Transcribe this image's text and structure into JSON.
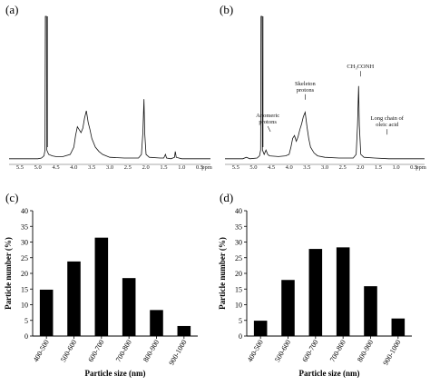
{
  "chart_data": [
    {
      "id": "a",
      "type": "line",
      "panel_label": "(a)",
      "x_tick_labels": [
        "5.5",
        "5.0",
        "4.5",
        "4.0",
        "3.5",
        "3.0",
        "2.5",
        "2.0",
        "1.5",
        "1.0",
        "0.5"
      ],
      "x_unit": "ppm",
      "xlim": [
        5.8,
        0.2
      ],
      "ylim": [
        0,
        100
      ],
      "points": [
        [
          5.8,
          2
        ],
        [
          5.0,
          2
        ],
        [
          4.9,
          2.5
        ],
        [
          4.83,
          4
        ],
        [
          4.8,
          8
        ],
        [
          4.79,
          100
        ],
        [
          4.76,
          100
        ],
        [
          4.75,
          8
        ],
        [
          4.7,
          5
        ],
        [
          4.6,
          4
        ],
        [
          4.5,
          3.5
        ],
        [
          4.3,
          3.5
        ],
        [
          4.1,
          5
        ],
        [
          4.0,
          10
        ],
        [
          3.95,
          18
        ],
        [
          3.9,
          24
        ],
        [
          3.85,
          22
        ],
        [
          3.8,
          20
        ],
        [
          3.75,
          23
        ],
        [
          3.7,
          30
        ],
        [
          3.65,
          35
        ],
        [
          3.6,
          27
        ],
        [
          3.55,
          22
        ],
        [
          3.5,
          16
        ],
        [
          3.4,
          10
        ],
        [
          3.3,
          7
        ],
        [
          3.2,
          5
        ],
        [
          3.0,
          3
        ],
        [
          2.6,
          2.5
        ],
        [
          2.2,
          2.5
        ],
        [
          2.12,
          5
        ],
        [
          2.08,
          20
        ],
        [
          2.05,
          43
        ],
        [
          2.03,
          20
        ],
        [
          1.99,
          5
        ],
        [
          1.9,
          3
        ],
        [
          1.6,
          2.5
        ],
        [
          1.5,
          2.5
        ],
        [
          1.45,
          5
        ],
        [
          1.42,
          2.5
        ],
        [
          1.3,
          2
        ],
        [
          1.2,
          3
        ],
        [
          1.18,
          7
        ],
        [
          1.15,
          3
        ],
        [
          1.0,
          2
        ],
        [
          0.2,
          2
        ]
      ]
    },
    {
      "id": "b",
      "type": "line",
      "panel_label": "(b)",
      "x_tick_labels": [
        "5.5",
        "5.0",
        "4.5",
        "4.0",
        "3.5",
        "3.0",
        "2.5",
        "2.0",
        "1.5",
        "1.0",
        "0.5"
      ],
      "x_unit": "ppm",
      "xlim": [
        5.8,
        0.2
      ],
      "ylim": [
        0,
        100
      ],
      "annotations": [
        {
          "lines": [
            "Anomeric",
            "protons"
          ],
          "at_x": 4.6,
          "at_y": 20
        },
        {
          "lines": [
            "Skeleton",
            "protons"
          ],
          "at_x": 3.55,
          "at_y": 42
        },
        {
          "lines": [
            "CH₃CONH"
          ],
          "at_x": 2.0,
          "at_y": 58
        },
        {
          "lines": [
            "Long chain of",
            "oleic acid"
          ],
          "at_x": 1.25,
          "at_y": 18
        }
      ],
      "points": [
        [
          5.8,
          2
        ],
        [
          5.3,
          2
        ],
        [
          5.2,
          3
        ],
        [
          5.1,
          2
        ],
        [
          4.9,
          2.5
        ],
        [
          4.83,
          4
        ],
        [
          4.8,
          8
        ],
        [
          4.79,
          100
        ],
        [
          4.76,
          100
        ],
        [
          4.75,
          8
        ],
        [
          4.7,
          5
        ],
        [
          4.65,
          8
        ],
        [
          4.6,
          5
        ],
        [
          4.55,
          4
        ],
        [
          4.3,
          3.5
        ],
        [
          4.1,
          4
        ],
        [
          4.0,
          5
        ],
        [
          3.95,
          10
        ],
        [
          3.9,
          16
        ],
        [
          3.85,
          18
        ],
        [
          3.8,
          14
        ],
        [
          3.75,
          17
        ],
        [
          3.7,
          22
        ],
        [
          3.65,
          26
        ],
        [
          3.6,
          31
        ],
        [
          3.55,
          34
        ],
        [
          3.5,
          24
        ],
        [
          3.45,
          16
        ],
        [
          3.4,
          10
        ],
        [
          3.3,
          6
        ],
        [
          3.2,
          4
        ],
        [
          3.0,
          3
        ],
        [
          2.6,
          2.5
        ],
        [
          2.2,
          2.5
        ],
        [
          2.12,
          5
        ],
        [
          2.08,
          25
        ],
        [
          2.05,
          52
        ],
        [
          2.03,
          25
        ],
        [
          1.99,
          5
        ],
        [
          1.9,
          3
        ],
        [
          1.6,
          2.5
        ],
        [
          1.2,
          2
        ],
        [
          0.2,
          2
        ]
      ]
    },
    {
      "id": "c",
      "type": "bar",
      "panel_label": "(c)",
      "categories": [
        "400-500",
        "500-600",
        "600-700",
        "700-800",
        "800-900",
        "900-1000"
      ],
      "values": [
        14.8,
        23.8,
        31.4,
        18.5,
        8.3,
        3.2
      ],
      "xlabel": "Particle size (nm)",
      "ylabel": "Particle number (%)",
      "ylim": [
        0,
        40
      ],
      "y_ticks": [
        0,
        5,
        10,
        15,
        20,
        25,
        30,
        35,
        40
      ]
    },
    {
      "id": "d",
      "type": "bar",
      "panel_label": "(d)",
      "categories": [
        "400-500",
        "500-600",
        "600-700",
        "700-800",
        "800-900",
        "900-1000"
      ],
      "values": [
        4.9,
        17.9,
        27.8,
        28.3,
        15.9,
        5.6
      ],
      "xlabel": "Particle size (nm)",
      "ylabel": "Particle number (%)",
      "ylim": [
        0,
        40
      ],
      "y_ticks": [
        0,
        5,
        10,
        15,
        20,
        25,
        30,
        35,
        40
      ]
    }
  ]
}
